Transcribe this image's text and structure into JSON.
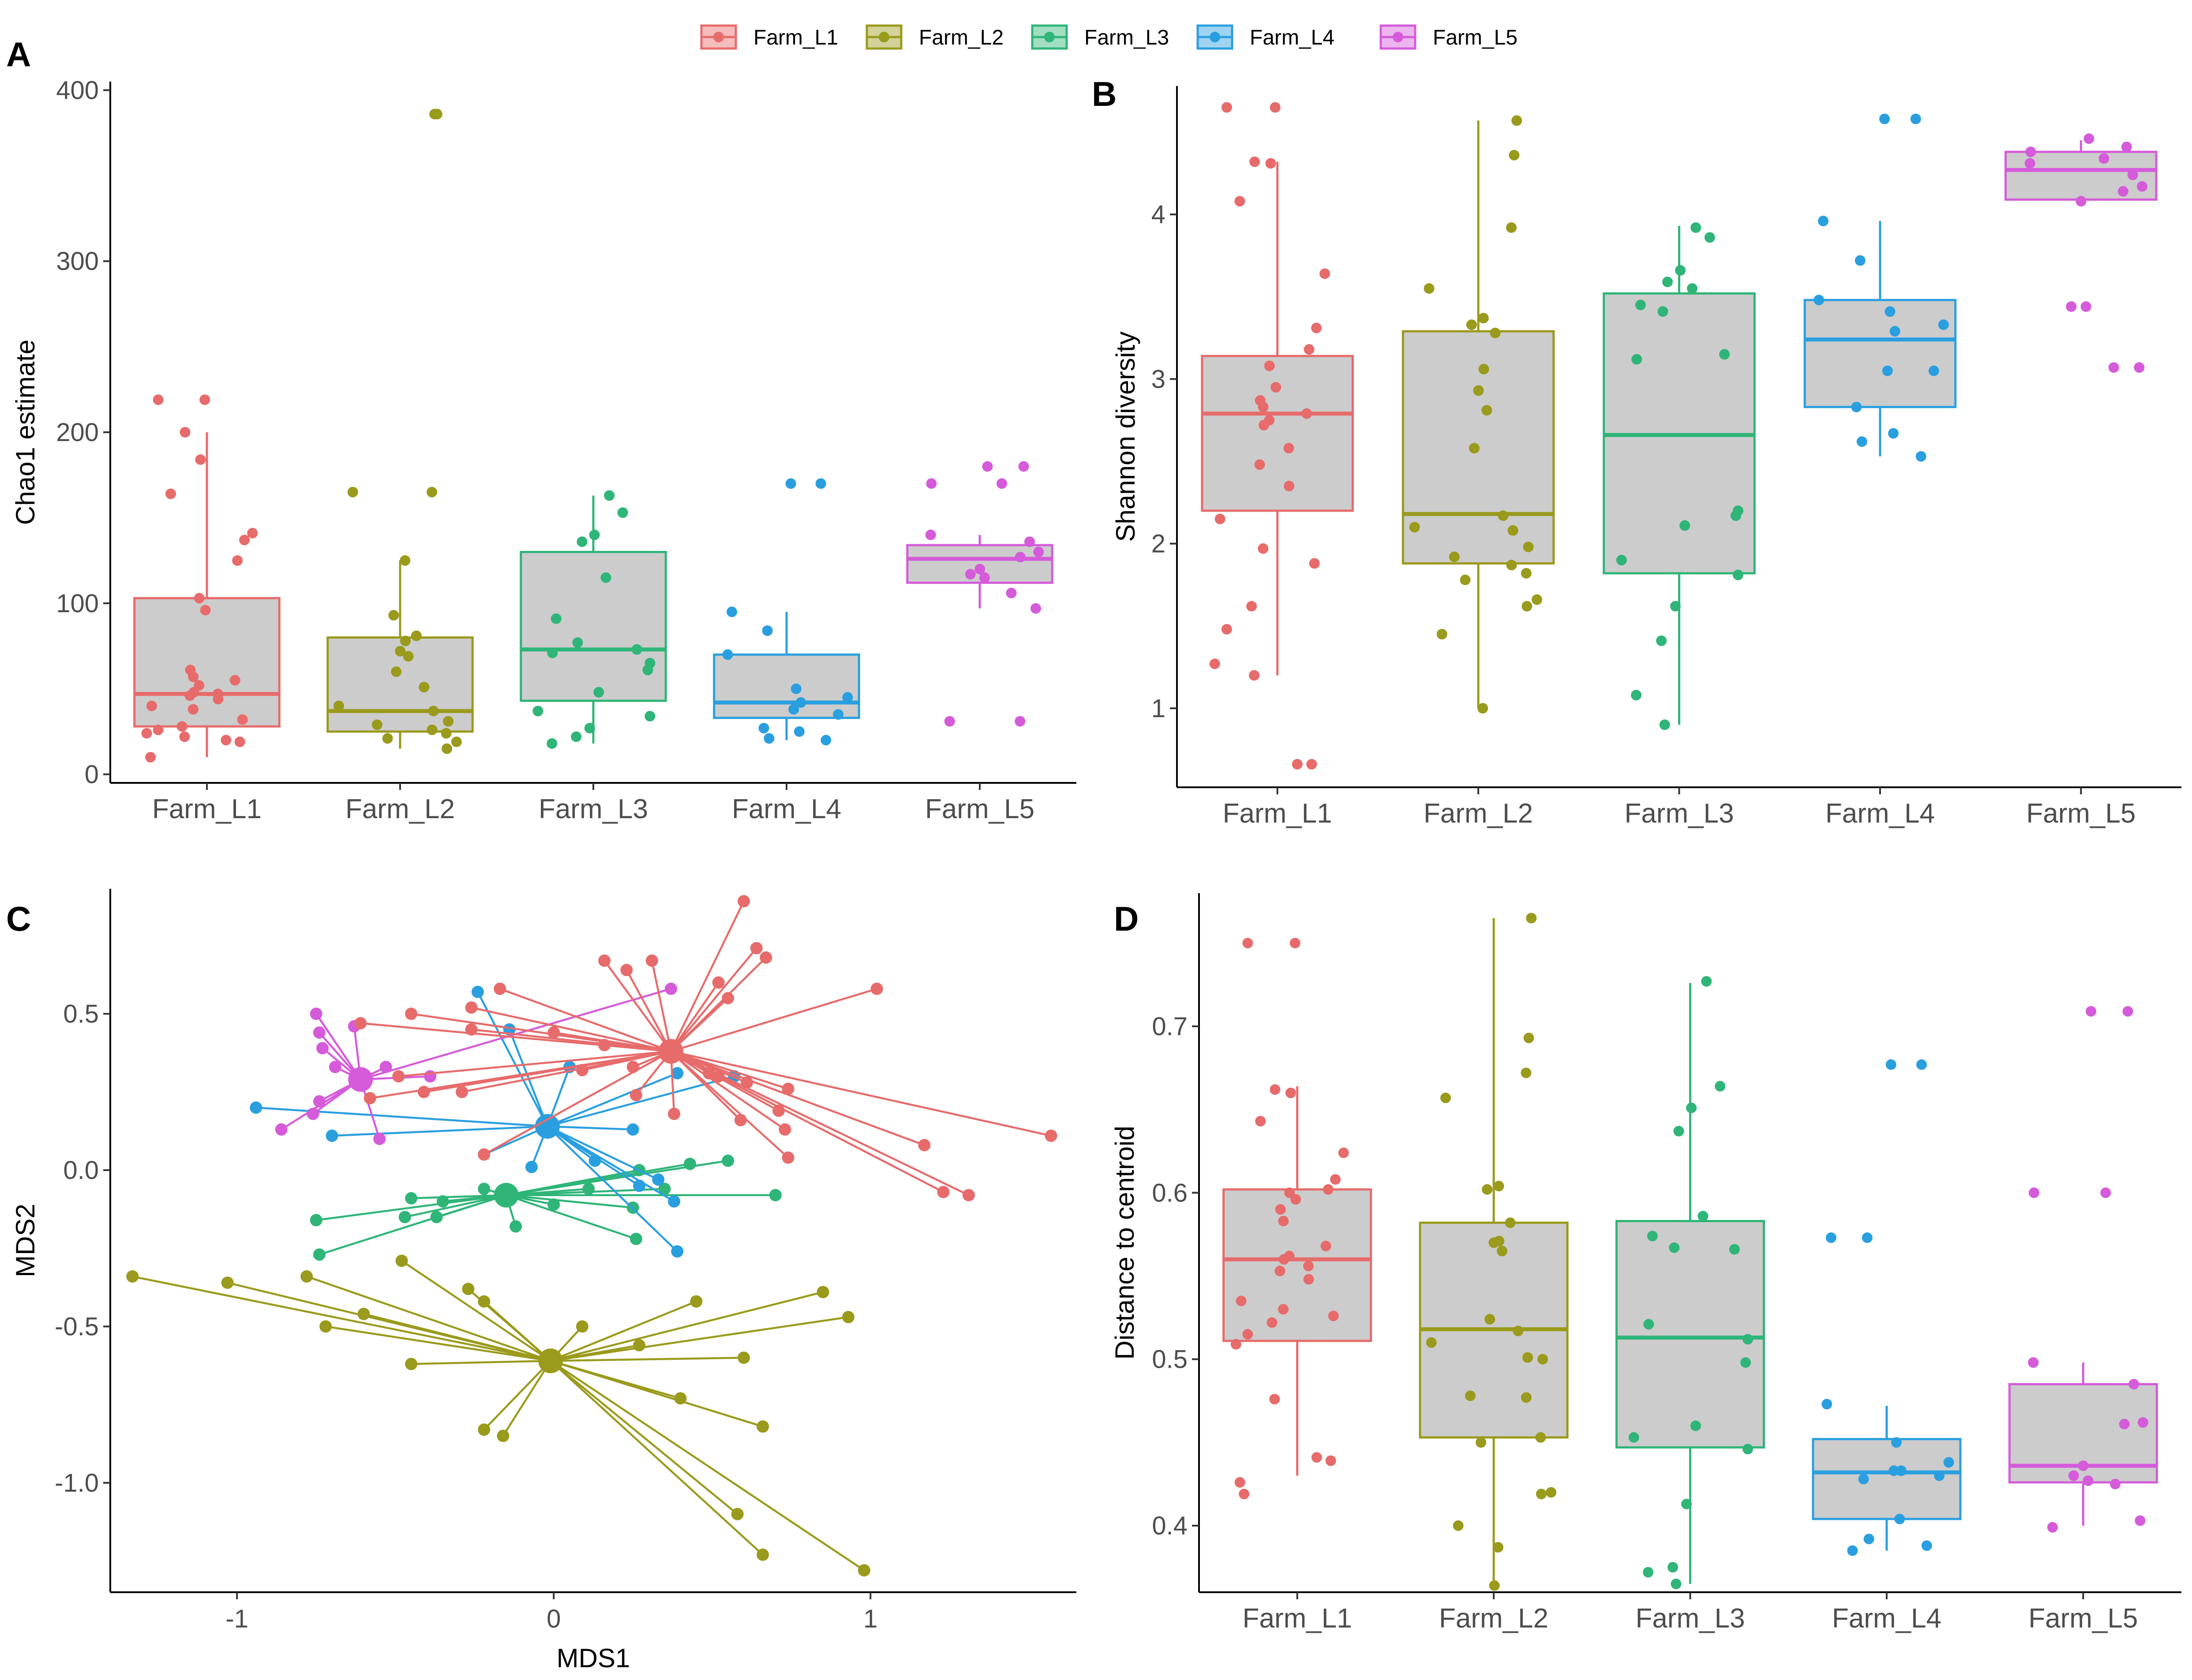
{
  "legend": {
    "items": [
      {
        "name": "Farm_L1",
        "color": "#E76B6B"
      },
      {
        "name": "Farm_L2",
        "color": "#9A9A1C"
      },
      {
        "name": "Farm_L3",
        "color": "#2FB578"
      },
      {
        "name": "Farm_L4",
        "color": "#2A9FE0"
      },
      {
        "name": "Farm_L5",
        "color": "#D55BDA"
      }
    ]
  },
  "chart_data": [
    {
      "panel": "A",
      "type": "box",
      "ylabel": "Chao1 estimate",
      "xlabel": "",
      "ylim": [
        -5,
        405
      ],
      "yticks": [
        0,
        100,
        200,
        300,
        400
      ],
      "ytick_labels": [
        "0",
        "100",
        "200",
        "300",
        "400"
      ],
      "categories": [
        "Farm_L1",
        "Farm_L2",
        "Farm_L3",
        "Farm_L4",
        "Farm_L5"
      ],
      "boxes": [
        {
          "q1": 28,
          "median": 47,
          "q3": 103,
          "wlo": 10,
          "whi": 200
        },
        {
          "q1": 25,
          "median": 37,
          "q3": 80,
          "wlo": 15,
          "whi": 125
        },
        {
          "q1": 43,
          "median": 73,
          "q3": 130,
          "wlo": 18,
          "whi": 163
        },
        {
          "q1": 33,
          "median": 42,
          "q3": 70,
          "wlo": 20,
          "whi": 95
        },
        {
          "q1": 112,
          "median": 126,
          "q3": 134,
          "wlo": 97,
          "whi": 140
        }
      ],
      "points": [
        [
          219,
          219,
          200,
          184,
          164,
          141,
          137,
          125,
          103,
          96,
          61,
          57,
          55,
          52,
          48,
          47,
          46,
          44,
          40,
          38,
          32,
          28,
          26,
          24,
          22,
          20,
          19,
          10
        ],
        [
          386,
          386,
          165,
          165,
          125,
          93,
          81,
          78,
          72,
          69,
          60,
          51,
          40,
          37,
          31,
          29,
          26,
          24,
          21,
          19,
          15
        ],
        [
          163,
          153,
          140,
          136,
          115,
          91,
          77,
          73,
          71,
          65,
          61,
          48,
          37,
          34,
          27,
          22,
          18
        ],
        [
          170,
          170,
          95,
          84,
          70,
          50,
          45,
          42,
          38,
          35,
          27,
          25,
          21,
          20
        ],
        [
          180,
          180,
          170,
          170,
          140,
          136,
          130,
          127,
          120,
          117,
          115,
          106,
          97,
          31,
          31
        ]
      ]
    },
    {
      "panel": "B",
      "type": "box",
      "ylabel": "Shannon diversity",
      "xlabel": "",
      "ylim": [
        0.52,
        4.78
      ],
      "yticks": [
        1,
        2,
        3,
        4
      ],
      "ytick_labels": [
        "1",
        "2",
        "3",
        "4"
      ],
      "categories": [
        "Farm_L1",
        "Farm_L2",
        "Farm_L3",
        "Farm_L4",
        "Farm_L5"
      ],
      "boxes": [
        {
          "q1": 2.2,
          "median": 2.79,
          "q3": 3.14,
          "wlo": 1.2,
          "whi": 4.32
        },
        {
          "q1": 1.88,
          "median": 2.18,
          "q3": 3.29,
          "wlo": 1.0,
          "whi": 4.57
        },
        {
          "q1": 1.82,
          "median": 2.66,
          "q3": 3.52,
          "wlo": 0.9,
          "whi": 3.93
        },
        {
          "q1": 2.83,
          "median": 3.24,
          "q3": 3.48,
          "wlo": 2.53,
          "whi": 3.96
        },
        {
          "q1": 4.09,
          "median": 4.27,
          "q3": 4.38,
          "wlo": 4.05,
          "whi": 4.45
        }
      ],
      "points": [
        [
          4.65,
          4.65,
          4.32,
          4.31,
          4.08,
          3.64,
          3.31,
          3.18,
          3.08,
          2.95,
          2.87,
          2.83,
          2.79,
          2.75,
          2.72,
          2.58,
          2.48,
          2.35,
          2.15,
          1.97,
          1.88,
          1.62,
          1.48,
          1.27,
          1.2,
          0.66,
          0.66
        ],
        [
          4.57,
          4.36,
          3.92,
          3.55,
          3.37,
          3.33,
          3.28,
          3.06,
          2.93,
          2.81,
          2.58,
          2.17,
          2.1,
          2.08,
          1.98,
          1.92,
          1.87,
          1.82,
          1.78,
          1.66,
          1.62,
          1.45,
          1.0
        ],
        [
          3.92,
          3.86,
          3.66,
          3.59,
          3.55,
          3.45,
          3.41,
          3.15,
          3.12,
          2.2,
          2.17,
          2.11,
          1.9,
          1.81,
          1.62,
          1.41,
          1.08,
          0.9
        ],
        [
          4.58,
          4.58,
          3.96,
          3.72,
          3.48,
          3.41,
          3.33,
          3.29,
          3.05,
          3.05,
          2.83,
          2.67,
          2.62,
          2.53
        ],
        [
          4.46,
          4.41,
          4.38,
          4.34,
          4.31,
          4.24,
          4.17,
          4.14,
          4.08,
          3.44,
          3.44,
          3.07,
          3.07
        ]
      ]
    },
    {
      "panel": "C",
      "type": "scatter",
      "xlabel": "MDS1",
      "ylabel": "MDS2",
      "xlim": [
        -1.4,
        1.65
      ],
      "ylim": [
        -1.35,
        0.9
      ],
      "xticks": [
        -1,
        0,
        1
      ],
      "xtick_labels": [
        "-1",
        "0",
        "1"
      ],
      "yticks": [
        -1.0,
        -0.5,
        0.0,
        0.5
      ],
      "ytick_labels": [
        "-1.0",
        "-0.5",
        "0.0",
        "0.5"
      ],
      "groups": [
        {
          "centroid": [
            0.37,
            0.38
          ],
          "points": [
            [
              0.6,
              0.86
            ],
            [
              0.64,
              0.71
            ],
            [
              0.67,
              0.68
            ],
            [
              1.02,
              0.58
            ],
            [
              0.55,
              0.55
            ],
            [
              0.52,
              0.6
            ],
            [
              0.31,
              0.67
            ],
            [
              0.16,
              0.67
            ],
            [
              0.23,
              0.64
            ],
            [
              -0.17,
              0.58
            ],
            [
              -0.45,
              0.5
            ],
            [
              -0.61,
              0.47
            ],
            [
              -0.26,
              0.52
            ],
            [
              -0.26,
              0.45
            ],
            [
              0.0,
              0.44
            ],
            [
              0.16,
              0.4
            ],
            [
              0.25,
              0.33
            ],
            [
              0.09,
              0.32
            ],
            [
              0.49,
              0.31
            ],
            [
              0.38,
              0.18
            ],
            [
              0.61,
              0.28
            ],
            [
              0.52,
              0.3
            ],
            [
              0.74,
              0.26
            ],
            [
              -0.49,
              0.3
            ],
            [
              -0.58,
              0.23
            ],
            [
              -0.29,
              0.25
            ],
            [
              -0.41,
              0.25
            ],
            [
              0.26,
              0.24
            ],
            [
              0.59,
              0.16
            ],
            [
              0.71,
              0.19
            ],
            [
              0.73,
              0.13
            ],
            [
              0.74,
              0.04
            ],
            [
              -0.22,
              0.05
            ],
            [
              1.57,
              0.11
            ],
            [
              1.17,
              0.08
            ],
            [
              1.23,
              -0.07
            ],
            [
              1.31,
              -0.08
            ]
          ]
        },
        {
          "centroid": [
            -0.01,
            -0.61
          ],
          "points": [
            [
              -1.33,
              -0.34
            ],
            [
              -1.03,
              -0.36
            ],
            [
              -0.78,
              -0.34
            ],
            [
              -0.48,
              -0.29
            ],
            [
              -0.27,
              -0.38
            ],
            [
              -0.22,
              -0.42
            ],
            [
              -0.6,
              -0.46
            ],
            [
              -0.72,
              -0.5
            ],
            [
              -0.45,
              -0.62
            ],
            [
              0.09,
              -0.5
            ],
            [
              0.45,
              -0.42
            ],
            [
              0.85,
              -0.39
            ],
            [
              0.93,
              -0.47
            ],
            [
              0.6,
              -0.6
            ],
            [
              0.27,
              -0.56
            ],
            [
              0.4,
              -0.73
            ],
            [
              0.66,
              -0.82
            ],
            [
              0.58,
              -1.1
            ],
            [
              0.66,
              -1.23
            ],
            [
              0.98,
              -1.28
            ],
            [
              -0.22,
              -0.83
            ],
            [
              -0.16,
              -0.85
            ]
          ]
        },
        {
          "centroid": [
            -0.15,
            -0.08
          ],
          "points": [
            [
              0.55,
              0.03
            ],
            [
              0.43,
              0.02
            ],
            [
              0.27,
              0.0
            ],
            [
              0.35,
              -0.06
            ],
            [
              0.25,
              -0.12
            ],
            [
              0.11,
              -0.06
            ],
            [
              0.7,
              -0.08
            ],
            [
              0.26,
              -0.22
            ],
            [
              0.0,
              -0.11
            ],
            [
              -0.12,
              -0.18
            ],
            [
              -0.22,
              -0.06
            ],
            [
              -0.35,
              -0.1
            ],
            [
              -0.45,
              -0.09
            ],
            [
              -0.75,
              -0.16
            ],
            [
              -0.74,
              -0.27
            ],
            [
              -0.47,
              -0.15
            ],
            [
              -0.37,
              -0.15
            ]
          ]
        },
        {
          "centroid": [
            -0.02,
            0.14
          ],
          "points": [
            [
              -0.24,
              0.57
            ],
            [
              -0.14,
              0.45
            ],
            [
              0.05,
              0.33
            ],
            [
              0.39,
              0.31
            ],
            [
              0.57,
              0.3
            ],
            [
              -0.94,
              0.2
            ],
            [
              -0.7,
              0.11
            ],
            [
              0.25,
              0.13
            ],
            [
              0.33,
              -0.03
            ],
            [
              0.13,
              0.03
            ],
            [
              -0.07,
              0.01
            ],
            [
              -0.22,
              0.05
            ],
            [
              0.38,
              -0.1
            ],
            [
              0.27,
              -0.05
            ],
            [
              0.39,
              -0.26
            ]
          ]
        },
        {
          "centroid": [
            -0.61,
            0.29
          ],
          "points": [
            [
              -0.75,
              0.5
            ],
            [
              -0.74,
              0.44
            ],
            [
              -0.63,
              0.46
            ],
            [
              -0.73,
              0.39
            ],
            [
              -0.69,
              0.33
            ],
            [
              -0.53,
              0.33
            ],
            [
              -0.39,
              0.3
            ],
            [
              -0.76,
              0.18
            ],
            [
              -0.74,
              0.22
            ],
            [
              -0.86,
              0.13
            ],
            [
              -0.55,
              0.1
            ],
            [
              0.37,
              0.58
            ]
          ]
        }
      ]
    },
    {
      "panel": "D",
      "type": "box",
      "ylabel": "Distance to centroid",
      "xlabel": "",
      "ylim": [
        0.36,
        0.78
      ],
      "yticks": [
        0.4,
        0.5,
        0.6,
        0.7
      ],
      "ytick_labels": [
        "0.4",
        "0.5",
        "0.6",
        "0.7"
      ],
      "categories": [
        "Farm_L1",
        "Farm_L2",
        "Farm_L3",
        "Farm_L4",
        "Farm_L5"
      ],
      "boxes": [
        {
          "q1": 0.511,
          "median": 0.56,
          "q3": 0.602,
          "wlo": 0.43,
          "whi": 0.664
        },
        {
          "q1": 0.453,
          "median": 0.518,
          "q3": 0.582,
          "wlo": 0.363,
          "whi": 0.765
        },
        {
          "q1": 0.447,
          "median": 0.513,
          "q3": 0.583,
          "wlo": 0.365,
          "whi": 0.726
        },
        {
          "q1": 0.404,
          "median": 0.432,
          "q3": 0.452,
          "wlo": 0.385,
          "whi": 0.472
        },
        {
          "q1": 0.426,
          "median": 0.436,
          "q3": 0.485,
          "wlo": 0.4,
          "whi": 0.498
        }
      ],
      "points": [
        [
          0.75,
          0.75,
          0.662,
          0.66,
          0.643,
          0.624,
          0.608,
          0.602,
          0.6,
          0.596,
          0.59,
          0.583,
          0.568,
          0.562,
          0.56,
          0.556,
          0.553,
          0.548,
          0.535,
          0.53,
          0.526,
          0.522,
          0.515,
          0.509,
          0.476,
          0.441,
          0.439,
          0.426,
          0.419
        ],
        [
          0.765,
          0.693,
          0.672,
          0.657,
          0.604,
          0.602,
          0.582,
          0.571,
          0.57,
          0.565,
          0.524,
          0.517,
          0.51,
          0.501,
          0.5,
          0.478,
          0.477,
          0.453,
          0.45,
          0.42,
          0.419,
          0.4,
          0.387,
          0.364
        ],
        [
          0.727,
          0.664,
          0.651,
          0.637,
          0.586,
          0.574,
          0.567,
          0.566,
          0.521,
          0.512,
          0.498,
          0.46,
          0.453,
          0.446,
          0.413,
          0.375,
          0.372,
          0.365
        ],
        [
          0.677,
          0.677,
          0.573,
          0.573,
          0.473,
          0.45,
          0.438,
          0.433,
          0.433,
          0.43,
          0.428,
          0.404,
          0.392,
          0.388,
          0.385
        ],
        [
          0.709,
          0.709,
          0.6,
          0.6,
          0.498,
          0.485,
          0.462,
          0.461,
          0.436,
          0.43,
          0.427,
          0.425,
          0.403,
          0.399
        ]
      ]
    }
  ]
}
